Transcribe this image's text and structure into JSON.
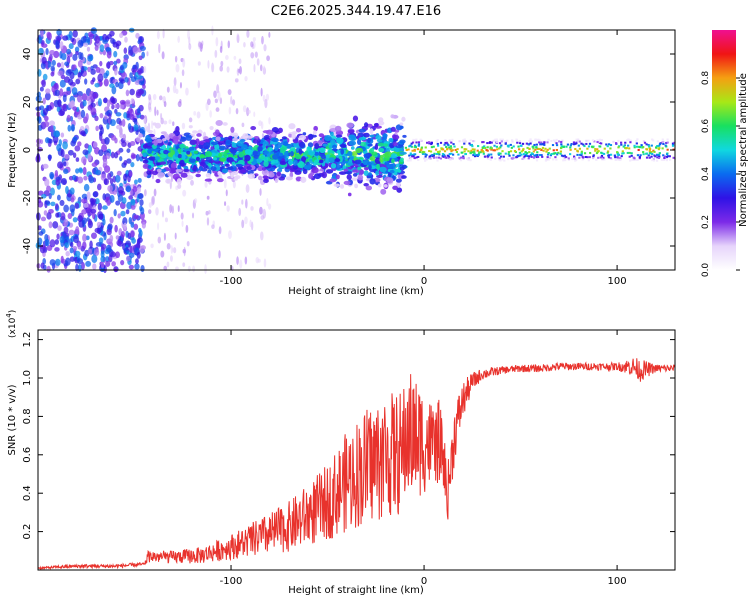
{
  "title": "C2E6.2025.344.19.47.E16",
  "colors": {
    "snr_line": "#e8322c",
    "axis": "#000000",
    "background": "#ffffff"
  },
  "colorbar": {
    "label": "Normalized spectral amplitude",
    "ticks": [
      "0.0",
      "0.2",
      "0.4",
      "0.6",
      "0.8"
    ],
    "tick_values": [
      0.0,
      0.2,
      0.4,
      0.6,
      0.8
    ],
    "range": [
      0,
      1
    ],
    "colormap": [
      "#ffffff",
      "#e6d4fb",
      "#7c2ae8",
      "#2f12e6",
      "#0a6bf0",
      "#10d8e0",
      "#18e060",
      "#a8e816",
      "#f5a012",
      "#f01414",
      "#f01090"
    ]
  },
  "chart_data": [
    {
      "type": "heatmap",
      "title": "C2E6.2025.344.19.47.E16",
      "xlabel": "Height of straight line (km)",
      "ylabel": "Frequency (Hz)",
      "xlim": [
        -200,
        130
      ],
      "ylim": [
        -50,
        50
      ],
      "x_ticks": [
        -100,
        0,
        100
      ],
      "x_tick_labels": [
        "-100",
        "0",
        "100"
      ],
      "y_ticks": [
        -40,
        -20,
        0,
        20,
        40
      ],
      "y_tick_labels": [
        "-40",
        "-20",
        "0",
        "20",
        "40"
      ],
      "regions": [
        {
          "x_range": [
            -200,
            -145
          ],
          "freq_range": [
            -50,
            50
          ],
          "amplitude": 0.2,
          "description": "noise"
        },
        {
          "x_range": [
            -145,
            -10
          ],
          "freq_center": -2,
          "freq_spread": 6,
          "amplitude": 0.45
        },
        {
          "x_range": [
            -10,
            130
          ],
          "freq_center": 0,
          "freq_spread": 1.5,
          "amplitude": 0.85
        }
      ]
    },
    {
      "type": "line",
      "xlabel": "Height of straight line (km)",
      "ylabel": "SNR (10 * v/v)",
      "multiplier_label": "(x10",
      "multiplier_exp": "4",
      "multiplier_close": ")",
      "xlim": [
        -200,
        130
      ],
      "ylim": [
        0,
        1.25
      ],
      "x_ticks": [
        -100,
        0,
        100
      ],
      "x_tick_labels": [
        "-100",
        "0",
        "100"
      ],
      "y_ticks": [
        0.2,
        0.4,
        0.6,
        0.8,
        1.0,
        1.2
      ],
      "y_tick_labels": [
        "0.2",
        "0.4",
        "0.6",
        "0.8",
        "1.0",
        "1.2"
      ],
      "series": [
        {
          "name": "SNR",
          "x": [
            -200,
            -180,
            -160,
            -145,
            -143,
            -130,
            -115,
            -100,
            -90,
            -80,
            -70,
            -60,
            -50,
            -40,
            -30,
            -20,
            -12,
            -8,
            -5,
            0,
            5,
            8,
            12,
            16,
            20,
            25,
            30,
            40,
            50,
            60,
            70,
            80,
            90,
            100,
            108,
            112,
            120,
            130
          ],
          "values": [
            0.01,
            0.02,
            0.02,
            0.03,
            0.07,
            0.06,
            0.06,
            0.1,
            0.12,
            0.14,
            0.17,
            0.22,
            0.28,
            0.36,
            0.42,
            0.48,
            0.5,
            0.7,
            0.65,
            0.72,
            0.78,
            0.82,
            0.38,
            0.72,
            0.88,
            0.98,
            1.02,
            1.04,
            1.05,
            1.05,
            1.06,
            1.06,
            1.06,
            1.06,
            1.06,
            1.04,
            1.05,
            1.05
          ],
          "noise": [
            0.005,
            0.01,
            0.01,
            0.01,
            0.03,
            0.03,
            0.04,
            0.06,
            0.08,
            0.1,
            0.12,
            0.15,
            0.18,
            0.24,
            0.28,
            0.3,
            0.3,
            0.3,
            0.3,
            0.25,
            0.2,
            0.2,
            0.15,
            0.15,
            0.1,
            0.05,
            0.03,
            0.02,
            0.02,
            0.02,
            0.02,
            0.02,
            0.02,
            0.02,
            0.05,
            0.06,
            0.02,
            0.02
          ]
        }
      ]
    }
  ]
}
